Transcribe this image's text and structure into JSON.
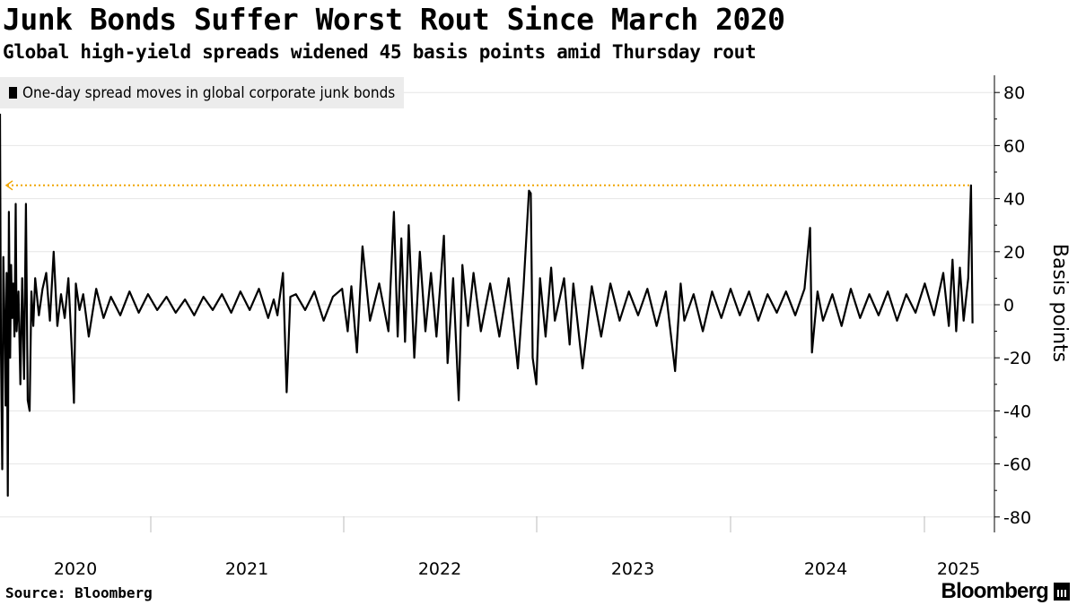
{
  "header": {
    "title": "Junk Bonds Suffer Worst Rout Since March 2020",
    "subtitle": "Global high-yield spreads widened 45 basis points amid Thursday rout"
  },
  "legend": {
    "label": "One-day spread moves in global corporate junk bonds"
  },
  "footer": {
    "source": "Source: Bloomberg",
    "brand": "Bloomberg"
  },
  "colors": {
    "series": "#000000",
    "reference_line": "#f0a500",
    "grid": "#e6e6e6",
    "legend_bg": "#ececec"
  },
  "chart_data": {
    "type": "line",
    "title": "Junk Bonds Suffer Worst Rout Since March 2020",
    "subtitle": "Global high-yield spreads widened 45 basis points amid Thursday rout",
    "ylabel": "Basis points",
    "ylim": [
      -86,
      88
    ],
    "y_ticks": [
      80,
      60,
      40,
      20,
      0,
      -20,
      -40,
      -60,
      -80
    ],
    "x_ticks": [
      "2020",
      "2021",
      "2022",
      "2023",
      "2024",
      "2025"
    ],
    "xlim": [
      2020.0,
      2025.265
    ],
    "grid": true,
    "legend_position": "top-left",
    "series": [
      {
        "name": "One-day spread moves in global corporate junk bonds",
        "points": [
          [
            2020.0,
            72
          ],
          [
            2020.005,
            -15
          ],
          [
            2020.012,
            -62
          ],
          [
            2020.018,
            18
          ],
          [
            2020.025,
            -8
          ],
          [
            2020.03,
            -38
          ],
          [
            2020.036,
            12
          ],
          [
            2020.042,
            -72
          ],
          [
            2020.048,
            35
          ],
          [
            2020.055,
            -20
          ],
          [
            2020.06,
            15
          ],
          [
            2020.066,
            -5
          ],
          [
            2020.072,
            8
          ],
          [
            2020.078,
            -12
          ],
          [
            2020.085,
            38
          ],
          [
            2020.09,
            -10
          ],
          [
            2020.1,
            5
          ],
          [
            2020.11,
            -30
          ],
          [
            2020.12,
            10
          ],
          [
            2020.13,
            -28
          ],
          [
            2020.14,
            38
          ],
          [
            2020.15,
            -36
          ],
          [
            2020.16,
            -40
          ],
          [
            2020.17,
            5
          ],
          [
            2020.18,
            -8
          ],
          [
            2020.19,
            10
          ],
          [
            2020.21,
            -4
          ],
          [
            2020.23,
            6
          ],
          [
            2020.25,
            12
          ],
          [
            2020.27,
            -6
          ],
          [
            2020.29,
            20
          ],
          [
            2020.31,
            -8
          ],
          [
            2020.33,
            4
          ],
          [
            2020.35,
            -5
          ],
          [
            2020.37,
            10
          ],
          [
            2020.39,
            -20
          ],
          [
            2020.4,
            -37
          ],
          [
            2020.41,
            8
          ],
          [
            2020.43,
            -2
          ],
          [
            2020.45,
            4
          ],
          [
            2020.48,
            -12
          ],
          [
            2020.52,
            6
          ],
          [
            2020.56,
            -5
          ],
          [
            2020.6,
            3
          ],
          [
            2020.65,
            -4
          ],
          [
            2020.7,
            5
          ],
          [
            2020.75,
            -3
          ],
          [
            2020.8,
            4
          ],
          [
            2020.85,
            -2
          ],
          [
            2020.9,
            3
          ],
          [
            2020.95,
            -3
          ],
          [
            2021.0,
            2
          ],
          [
            2021.05,
            -4
          ],
          [
            2021.1,
            3
          ],
          [
            2021.15,
            -2
          ],
          [
            2021.2,
            4
          ],
          [
            2021.25,
            -3
          ],
          [
            2021.3,
            5
          ],
          [
            2021.35,
            -2
          ],
          [
            2021.4,
            6
          ],
          [
            2021.45,
            -5
          ],
          [
            2021.48,
            2
          ],
          [
            2021.5,
            -4
          ],
          [
            2021.53,
            12
          ],
          [
            2021.55,
            -33
          ],
          [
            2021.57,
            3
          ],
          [
            2021.6,
            4
          ],
          [
            2021.65,
            -2
          ],
          [
            2021.7,
            5
          ],
          [
            2021.75,
            -6
          ],
          [
            2021.8,
            3
          ],
          [
            2021.85,
            6
          ],
          [
            2021.88,
            -10
          ],
          [
            2021.9,
            7
          ],
          [
            2021.93,
            -18
          ],
          [
            2021.96,
            22
          ],
          [
            2022.0,
            -6
          ],
          [
            2022.05,
            8
          ],
          [
            2022.1,
            -10
          ],
          [
            2022.13,
            35
          ],
          [
            2022.15,
            -12
          ],
          [
            2022.17,
            25
          ],
          [
            2022.19,
            -14
          ],
          [
            2022.21,
            30
          ],
          [
            2022.24,
            -20
          ],
          [
            2022.27,
            20
          ],
          [
            2022.3,
            -10
          ],
          [
            2022.33,
            12
          ],
          [
            2022.36,
            -12
          ],
          [
            2022.4,
            26
          ],
          [
            2022.42,
            -22
          ],
          [
            2022.45,
            10
          ],
          [
            2022.48,
            -36
          ],
          [
            2022.5,
            15
          ],
          [
            2022.53,
            -8
          ],
          [
            2022.56,
            12
          ],
          [
            2022.6,
            -10
          ],
          [
            2022.65,
            8
          ],
          [
            2022.7,
            -12
          ],
          [
            2022.75,
            10
          ],
          [
            2022.8,
            -24
          ],
          [
            2022.83,
            6
          ],
          [
            2022.86,
            43
          ],
          [
            2022.87,
            42
          ],
          [
            2022.88,
            -20
          ],
          [
            2022.9,
            -30
          ],
          [
            2022.92,
            10
          ],
          [
            2022.95,
            -12
          ],
          [
            2022.98,
            14
          ],
          [
            2023.0,
            -6
          ],
          [
            2023.05,
            10
          ],
          [
            2023.08,
            -15
          ],
          [
            2023.1,
            8
          ],
          [
            2023.15,
            -24
          ],
          [
            2023.2,
            7
          ],
          [
            2023.25,
            -12
          ],
          [
            2023.3,
            8
          ],
          [
            2023.35,
            -6
          ],
          [
            2023.4,
            5
          ],
          [
            2023.45,
            -4
          ],
          [
            2023.5,
            6
          ],
          [
            2023.55,
            -8
          ],
          [
            2023.6,
            5
          ],
          [
            2023.65,
            -25
          ],
          [
            2023.68,
            8
          ],
          [
            2023.7,
            -6
          ],
          [
            2023.75,
            4
          ],
          [
            2023.8,
            -10
          ],
          [
            2023.85,
            5
          ],
          [
            2023.9,
            -5
          ],
          [
            2023.95,
            6
          ],
          [
            2024.0,
            -4
          ],
          [
            2024.05,
            5
          ],
          [
            2024.1,
            -6
          ],
          [
            2024.15,
            4
          ],
          [
            2024.2,
            -3
          ],
          [
            2024.25,
            5
          ],
          [
            2024.3,
            -4
          ],
          [
            2024.35,
            6
          ],
          [
            2024.38,
            29
          ],
          [
            2024.39,
            -18
          ],
          [
            2024.42,
            5
          ],
          [
            2024.45,
            -6
          ],
          [
            2024.5,
            4
          ],
          [
            2024.55,
            -8
          ],
          [
            2024.6,
            6
          ],
          [
            2024.65,
            -5
          ],
          [
            2024.7,
            4
          ],
          [
            2024.75,
            -4
          ],
          [
            2024.8,
            5
          ],
          [
            2024.85,
            -6
          ],
          [
            2024.9,
            4
          ],
          [
            2024.95,
            -3
          ],
          [
            2025.0,
            8
          ],
          [
            2025.05,
            -4
          ],
          [
            2025.1,
            12
          ],
          [
            2025.13,
            -8
          ],
          [
            2025.15,
            17
          ],
          [
            2025.17,
            -10
          ],
          [
            2025.19,
            14
          ],
          [
            2025.21,
            -6
          ],
          [
            2025.235,
            10
          ],
          [
            2025.25,
            45
          ],
          [
            2025.258,
            -7
          ]
        ]
      }
    ],
    "reference_line": {
      "y": 45
    }
  }
}
